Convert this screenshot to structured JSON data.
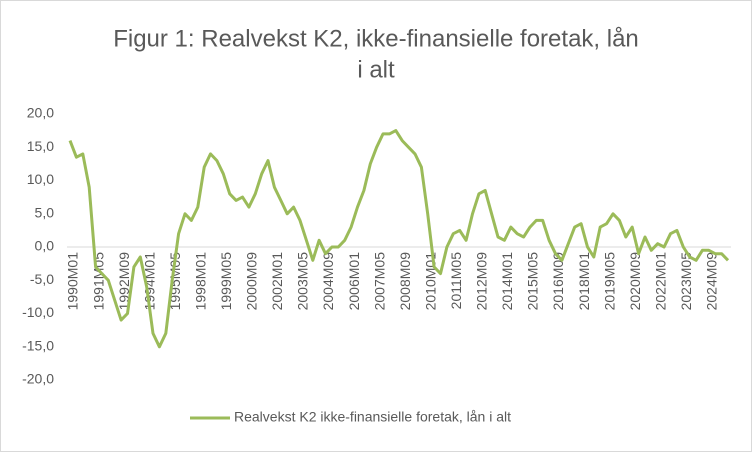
{
  "chart_data": {
    "type": "line",
    "title": [
      "Figur 1: Realvekst K2, ikke-finansielle foretak, lån",
      "i alt"
    ],
    "categories": [
      "1990M01",
      null,
      null,
      null,
      "1991M05",
      null,
      null,
      null,
      "1992M09",
      null,
      null,
      null,
      "1994M01",
      null,
      null,
      null,
      "1995M05",
      null,
      null,
      null,
      "1998M01",
      null,
      null,
      null,
      "1999M05",
      null,
      null,
      null,
      "2000M09",
      null,
      null,
      null,
      "2002M01",
      null,
      null,
      null,
      "2003M05",
      null,
      null,
      null,
      "2004M09",
      null,
      null,
      null,
      "2006M01",
      null,
      null,
      null,
      "2007M05",
      null,
      null,
      null,
      "2008M09",
      null,
      null,
      null,
      "2010M01",
      null,
      null,
      null,
      "2011M05",
      null,
      null,
      null,
      "2012M09",
      null,
      null,
      null,
      "2014M01",
      null,
      null,
      null,
      "2015M05",
      null,
      null,
      null,
      "2016M09",
      null,
      null,
      null,
      "2018M01",
      null,
      null,
      null,
      "2019M05",
      null,
      null,
      null,
      "2020M09",
      null,
      null,
      null,
      "2022M01",
      null,
      null,
      null,
      "2023M05",
      null,
      null,
      null,
      "2024M09",
      null,
      null,
      null
    ],
    "series": [
      {
        "name": "Realvekst K2 ikke-finansielle foretak, lån i alt",
        "color": "#9bbb59",
        "values": [
          16,
          13.5,
          14,
          9,
          -3,
          -4,
          -5,
          -8,
          -11,
          -10,
          -3,
          -1.5,
          -6,
          -13,
          -15,
          -13,
          -5,
          2,
          5,
          4,
          6,
          12,
          14,
          13,
          11,
          8,
          7,
          7.5,
          6,
          8,
          11,
          13,
          9,
          7,
          5,
          6,
          4,
          1,
          -2,
          1,
          -1,
          0,
          0,
          1,
          3,
          6,
          8.5,
          12.5,
          15,
          17,
          17,
          17.5,
          16,
          15,
          14,
          12,
          5,
          -3,
          -4,
          0,
          2,
          2.5,
          1,
          5,
          8,
          8.5,
          5,
          1.5,
          1,
          3,
          2,
          1.5,
          3,
          4,
          4,
          1,
          -1,
          -2,
          0.5,
          3,
          3.5,
          0,
          -1.5,
          3,
          3.5,
          5,
          4,
          1.5,
          3,
          -1,
          1.5,
          -0.5,
          0.5,
          0,
          2,
          2.5,
          0,
          -1.5,
          -2,
          -0.5,
          -0.5,
          -1,
          -1,
          -2
        ]
      }
    ],
    "ylim": [
      -20,
      20
    ],
    "yticks": [
      {
        "value": -20,
        "label": "-20,0"
      },
      {
        "value": -15,
        "label": "-15,0"
      },
      {
        "value": -10,
        "label": "-10,0"
      },
      {
        "value": -5,
        "label": "-5,0"
      },
      {
        "value": 0,
        "label": "0,0"
      },
      {
        "value": 5,
        "label": "5,0"
      },
      {
        "value": 10,
        "label": "10,0"
      },
      {
        "value": 15,
        "label": "15,0"
      },
      {
        "value": 20,
        "label": "20,0"
      }
    ],
    "legend": "bottom"
  }
}
